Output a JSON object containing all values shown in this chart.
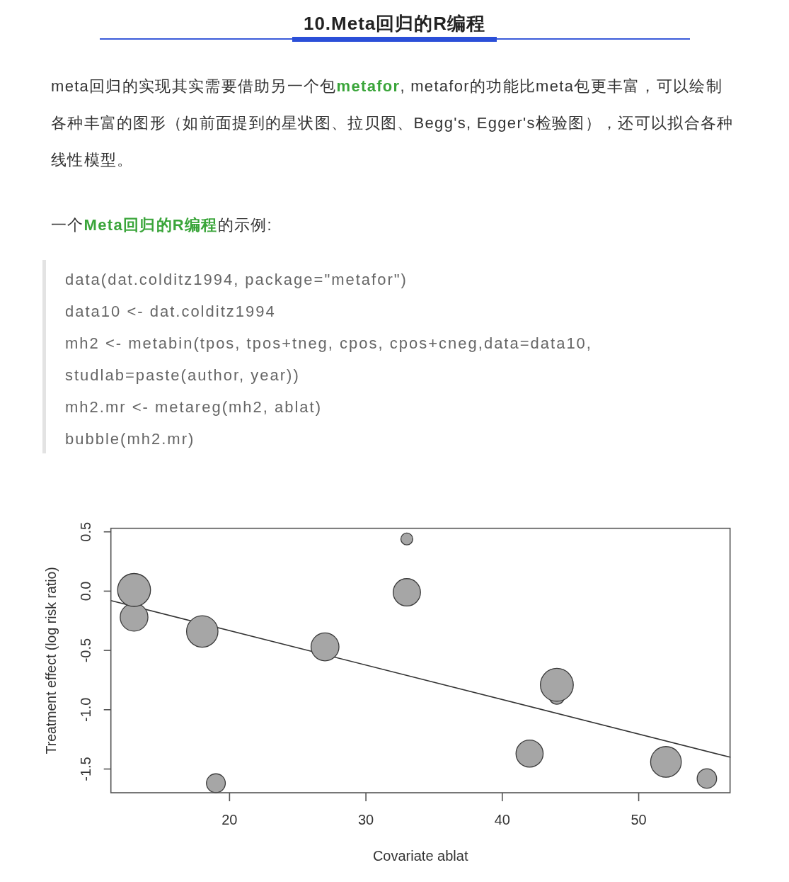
{
  "chart_data": {
    "type": "bubble",
    "title": "10.Meta回归的R编程",
    "subtitle": "meta回归的实现其实需要借助另一个包**metafor**, metafor的功能比meta包更丰富，可以绘制各种丰富的图形（如前面提到的星状图、拉贝图、Begg's, Egger's检验图），还可以拟合各种线性模型。",
    "annotations": [
      "一个**Meta回归的R编程**的示例:",
      "data(dat.colditz1994, package=\"metafor\")",
      "data10 <- dat.colditz1994",
      "mh2 <- metabin(tpos, tpos+tneg, cpos, cpos+cneg,data=data10,",
      "studlab=paste(author, year))",
      "mh2.mr <- metareg(mh2, ablat)",
      "bubble(mh2.mr)"
    ],
    "xlabel": "Covariate ablat",
    "ylabel": "Treatment effect (log risk ratio)",
    "xlim": [
      11.3,
      56.7
    ],
    "ylim": [
      -1.7,
      0.53
    ],
    "xticks": [
      20,
      30,
      40,
      50
    ],
    "yticks": [
      -1.5,
      {
        "value": -1,
        "label": "-1.0"
      },
      -0.5,
      {
        "value": 0,
        "label": "0.0"
      },
      0.5
    ],
    "series": [
      {
        "type": "line",
        "color": "#333333",
        "x": [
          11.3,
          56.7
        ],
        "values": [
          -0.08,
          -1.4
        ]
      },
      {
        "color": "#a6a6a6",
        "x": [
          44,
          55,
          52,
          13,
          44,
          19,
          13,
          27,
          42,
          18,
          33,
          33
        ],
        "values": [
          -0.89,
          -1.58,
          -1.44,
          -0.22,
          -0.79,
          -1.62,
          0.01,
          -0.47,
          -1.37,
          -0.34,
          0.44,
          -0.01
        ],
        "sizes": [
          0.21,
          0.35,
          0.87,
          0.71,
          1,
          0.33,
          1,
          0.72,
          0.68,
          0.91,
          0.13,
          0.69
        ]
      }
    ]
  }
}
